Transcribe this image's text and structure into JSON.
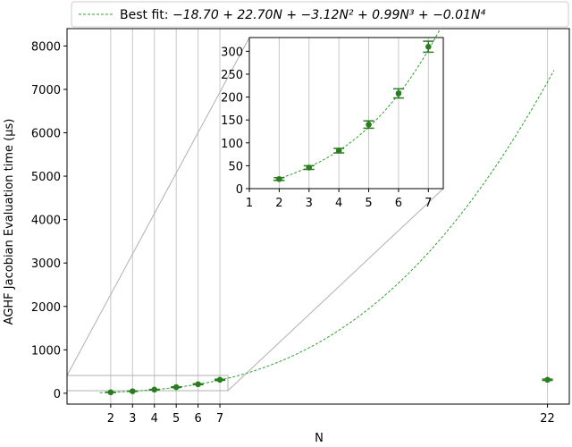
{
  "chart_data": {
    "type": "scatter",
    "xlabel": "N",
    "ylabel": "AGHF Jacobian Evaluation time (μs)",
    "x_ticks": [
      2,
      3,
      4,
      5,
      6,
      7,
      22
    ],
    "y_ticks": [
      0,
      1000,
      2000,
      3000,
      4000,
      5000,
      6000,
      7000,
      8000
    ],
    "xlim": [
      0,
      23
    ],
    "ylim": [
      -250,
      8400
    ],
    "grid": "vertical lines at x ticks",
    "legend": {
      "placement": "top-center",
      "label_prefix": "Best fit: ",
      "label_formula": "−18.70 + 22.70N + −3.12N² + 0.99N³ + −0.01N⁴"
    },
    "fit": {
      "name": "Best fit",
      "coefficients": [
        -18.7,
        22.7,
        -3.12,
        0.99,
        -0.01
      ],
      "color": "#2ca02c",
      "style": "dashed"
    },
    "series": [
      {
        "marker_color": "#2a7d1e",
        "x": [
          2,
          3,
          4,
          5,
          6,
          7,
          22
        ],
        "y": [
          21,
          46,
          83,
          140,
          208,
          310,
          310
        ],
        "yerr": [
          3,
          4,
          5,
          8,
          10,
          12,
          15
        ]
      }
    ],
    "inset": {
      "placement": "upper-middle",
      "xlim": [
        1,
        7.5
      ],
      "ylim": [
        0,
        330
      ],
      "x_ticks": [
        1,
        2,
        3,
        4,
        5,
        6,
        7
      ],
      "y_ticks": [
        0,
        50,
        100,
        150,
        200,
        250,
        300
      ]
    }
  }
}
